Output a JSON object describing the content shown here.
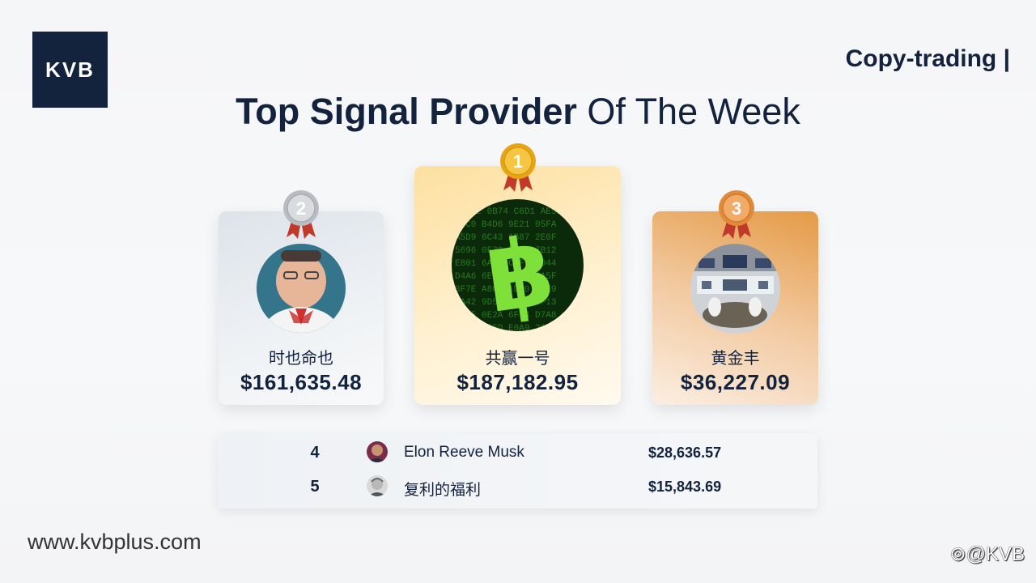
{
  "brand": {
    "logo_text": "KVB",
    "tag": "Copy-trading |"
  },
  "title": {
    "strong": "Top Signal Provider",
    "rest": " Of The Week"
  },
  "podium": [
    {
      "rank": "2",
      "name": "时也命也",
      "amount": "$161,635.48",
      "medal_color": "#c9ccd1"
    },
    {
      "rank": "1",
      "name": "共赢一号",
      "amount": "$187,182.95",
      "medal_color": "#f2b51f"
    },
    {
      "rank": "3",
      "name": "黄金丰",
      "amount": "$36,227.09",
      "medal_color": "#e89a4c"
    }
  ],
  "list": [
    {
      "rank": "4",
      "name": "Elon Reeve Musk",
      "amount": "$28,636.57"
    },
    {
      "rank": "5",
      "name": "复利的福利",
      "amount": "$15,843.69"
    }
  ],
  "footer": {
    "url": "www.kvbplus.com",
    "handle": "@KVB"
  },
  "colors": {
    "navy": "#13223d",
    "gold": "#f2b51f",
    "silver": "#c9ccd1",
    "bronze": "#e89a4c",
    "ribbon": "#c0392b"
  }
}
